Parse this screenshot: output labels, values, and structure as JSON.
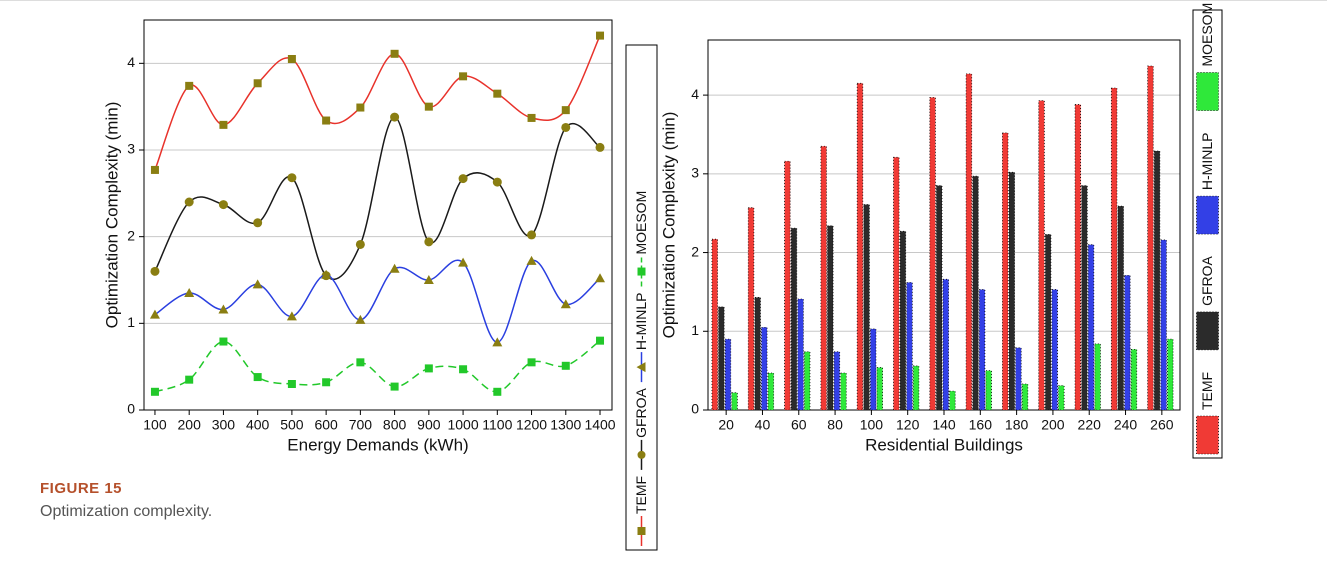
{
  "chart_data": [
    {
      "type": "line",
      "smooth": true,
      "grid": true,
      "legend": "right",
      "x_label": "Energy Demands (kWh)",
      "y_label": "Optimization Complexity (min)",
      "x": [
        100,
        200,
        300,
        400,
        500,
        600,
        700,
        800,
        900,
        1000,
        1100,
        1200,
        1300,
        1400
      ],
      "xlim": [
        68,
        1435
      ],
      "xticks": [
        100,
        200,
        300,
        400,
        500,
        600,
        700,
        800,
        900,
        1000,
        1100,
        1200,
        1300,
        1400
      ],
      "ylim": [
        0,
        4.5
      ],
      "yticks": [
        0,
        1,
        2,
        3,
        4
      ],
      "marker_color": "#8a7e12",
      "series": [
        {
          "name": "TEMF",
          "color": "#e8322b",
          "dash": false,
          "marker": "square",
          "values": [
            2.77,
            3.74,
            3.29,
            3.77,
            4.05,
            3.34,
            3.49,
            4.11,
            3.5,
            3.85,
            3.65,
            3.37,
            3.46,
            4.32
          ]
        },
        {
          "name": "GFROA",
          "color": "#1a1a1a",
          "dash": false,
          "marker": "circle",
          "values": [
            1.6,
            2.4,
            2.37,
            2.16,
            2.68,
            1.55,
            1.91,
            3.38,
            1.94,
            2.67,
            2.63,
            2.02,
            3.26,
            3.03
          ]
        },
        {
          "name": "H-MINLP",
          "color": "#2a3fe0",
          "dash": false,
          "marker": "triangle",
          "values": [
            1.1,
            1.35,
            1.16,
            1.45,
            1.08,
            1.56,
            1.04,
            1.63,
            1.5,
            1.7,
            0.78,
            1.72,
            1.22,
            1.52
          ]
        },
        {
          "name": "MOESOM",
          "color": "#22c82a",
          "dash": true,
          "marker": "square",
          "values": [
            0.21,
            0.35,
            0.79,
            0.38,
            0.3,
            0.32,
            0.55,
            0.27,
            0.48,
            0.47,
            0.21,
            0.55,
            0.51,
            0.8
          ]
        }
      ]
    },
    {
      "type": "bar",
      "grid": true,
      "legend": "right",
      "x_label": "Residential Buildings",
      "y_label": "Optimization Complexity (min)",
      "categories": [
        "20",
        "40",
        "60",
        "80",
        "100",
        "120",
        "140",
        "160",
        "180",
        "200",
        "220",
        "240",
        "260"
      ],
      "ylim": [
        0,
        4.7
      ],
      "yticks": [
        0,
        1,
        2,
        3,
        4
      ],
      "series": [
        {
          "name": "TEMF",
          "color": "#f03a35",
          "values": [
            2.17,
            2.57,
            3.16,
            3.35,
            4.15,
            3.21,
            3.97,
            4.27,
            3.52,
            3.93,
            3.88,
            4.09,
            4.37
          ]
        },
        {
          "name": "GFROA",
          "color": "#2b2b2b",
          "values": [
            1.31,
            1.43,
            2.31,
            2.34,
            2.61,
            2.27,
            2.85,
            2.97,
            3.02,
            2.23,
            2.85,
            2.59,
            3.29
          ]
        },
        {
          "name": "H-MINLP",
          "color": "#3340e6",
          "values": [
            0.9,
            1.05,
            1.41,
            0.74,
            1.03,
            1.62,
            1.66,
            1.53,
            0.79,
            1.53,
            2.1,
            1.71,
            2.16
          ]
        },
        {
          "name": "MOESOM",
          "color": "#2fe83a",
          "values": [
            0.22,
            0.47,
            0.74,
            0.47,
            0.54,
            0.56,
            0.24,
            0.5,
            0.33,
            0.31,
            0.84,
            0.77,
            0.9
          ]
        }
      ]
    }
  ],
  "figure": {
    "label": "FIGURE 15",
    "caption": "Optimization complexity."
  }
}
